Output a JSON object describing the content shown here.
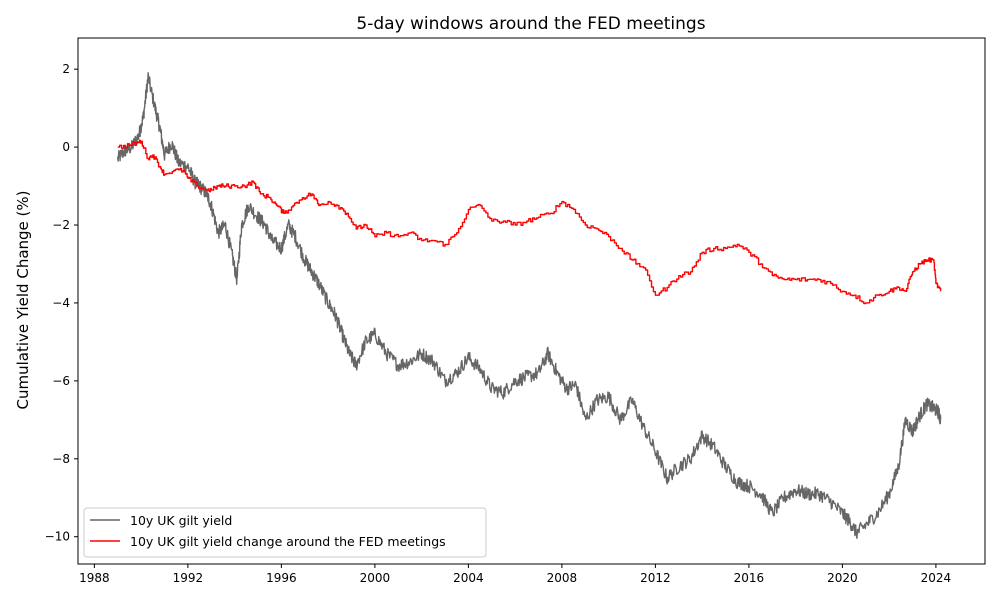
{
  "chart_data": {
    "type": "line",
    "title": "5-day windows around the FED meetings",
    "xlabel": "",
    "ylabel": "Cumulative Yield Change (%)",
    "xlim": [
      1987.3,
      2026.1
    ],
    "ylim": [
      -10.7,
      2.8
    ],
    "xticks": [
      1988,
      1992,
      1996,
      2000,
      2004,
      2008,
      2012,
      2016,
      2020,
      2024
    ],
    "yticks": [
      2,
      0,
      -2,
      -4,
      -6,
      -8,
      -10
    ],
    "grid": false,
    "legend_position": "lower-left",
    "series": [
      {
        "name": "10y UK gilt yield",
        "color": "#666666",
        "style": "noisy-line",
        "x": [
          1989.0,
          1989.3,
          1989.6,
          1989.9,
          1990.1,
          1990.3,
          1990.6,
          1990.8,
          1991.0,
          1991.3,
          1991.6,
          1992.0,
          1992.3,
          1992.5,
          1992.8,
          1993.0,
          1993.3,
          1993.6,
          1993.9,
          1994.1,
          1994.3,
          1994.6,
          1995.0,
          1995.3,
          1995.6,
          1996.0,
          1996.3,
          1996.6,
          1997.0,
          1997.3,
          1997.6,
          1998.0,
          1998.3,
          1998.6,
          1998.9,
          1999.2,
          1999.6,
          2000.0,
          2000.5,
          2001.0,
          2001.5,
          2002.0,
          2002.5,
          2003.0,
          2003.5,
          2004.0,
          2004.5,
          2005.0,
          2005.5,
          2006.0,
          2006.5,
          2007.0,
          2007.4,
          2007.8,
          2008.2,
          2008.6,
          2009.0,
          2009.5,
          2010.0,
          2010.5,
          2011.0,
          2011.5,
          2012.0,
          2012.5,
          2013.0,
          2013.5,
          2014.0,
          2014.5,
          2015.0,
          2015.5,
          2016.0,
          2016.5,
          2017.0,
          2017.5,
          2018.0,
          2018.5,
          2019.0,
          2019.5,
          2020.0,
          2020.3,
          2020.6,
          2021.0,
          2021.5,
          2022.0,
          2022.4,
          2022.7,
          2023.0,
          2023.3,
          2023.6,
          2023.9,
          2024.1,
          2024.2
        ],
        "y": [
          -0.3,
          -0.1,
          0.0,
          0.3,
          0.8,
          1.8,
          1.0,
          0.5,
          -0.2,
          0.1,
          -0.4,
          -0.5,
          -0.9,
          -1.0,
          -1.2,
          -1.5,
          -2.2,
          -2.0,
          -2.8,
          -3.4,
          -2.0,
          -1.5,
          -1.8,
          -2.0,
          -2.4,
          -2.6,
          -2.0,
          -2.3,
          -2.9,
          -3.2,
          -3.5,
          -4.0,
          -4.3,
          -4.8,
          -5.3,
          -5.6,
          -5.0,
          -4.8,
          -5.3,
          -5.6,
          -5.5,
          -5.3,
          -5.5,
          -6.0,
          -5.8,
          -5.4,
          -5.7,
          -6.2,
          -6.3,
          -6.0,
          -5.9,
          -5.8,
          -5.3,
          -5.8,
          -6.2,
          -6.1,
          -7.0,
          -6.5,
          -6.4,
          -7.0,
          -6.5,
          -7.2,
          -7.8,
          -8.5,
          -8.2,
          -8.0,
          -7.4,
          -7.7,
          -8.2,
          -8.6,
          -8.7,
          -8.9,
          -9.4,
          -9.0,
          -8.8,
          -8.9,
          -8.9,
          -9.1,
          -9.4,
          -9.6,
          -9.9,
          -9.7,
          -9.4,
          -8.9,
          -8.2,
          -7.0,
          -7.3,
          -6.9,
          -6.6,
          -6.7,
          -6.8,
          -7.0
        ]
      },
      {
        "name": "10y UK gilt yield change around the FED meetings",
        "color": "#ff0000",
        "style": "step",
        "x": [
          1989.0,
          1989.5,
          1989.8,
          1990.0,
          1990.3,
          1990.5,
          1990.8,
          1991.0,
          1991.4,
          1991.8,
          1992.0,
          1992.4,
          1992.8,
          1993.0,
          1993.3,
          1993.6,
          1994.0,
          1994.4,
          1994.8,
          1995.1,
          1995.5,
          1995.8,
          1996.1,
          1996.5,
          1996.9,
          1997.3,
          1997.6,
          1998.0,
          1998.4,
          1998.8,
          1999.2,
          1999.6,
          2000.0,
          2000.5,
          2001.0,
          2001.5,
          2002.0,
          2002.5,
          2003.0,
          2003.5,
          2004.0,
          2004.5,
          2005.0,
          2005.5,
          2006.0,
          2006.5,
          2007.0,
          2007.5,
          2008.0,
          2008.5,
          2009.0,
          2009.5,
          2010.0,
          2010.5,
          2011.0,
          2011.5,
          2012.0,
          2012.5,
          2013.0,
          2013.5,
          2014.0,
          2014.5,
          2015.0,
          2015.5,
          2016.0,
          2016.5,
          2017.0,
          2017.5,
          2018.0,
          2018.5,
          2019.0,
          2019.5,
          2020.0,
          2020.5,
          2021.0,
          2021.5,
          2022.0,
          2022.4,
          2022.7,
          2023.0,
          2023.3,
          2023.6,
          2023.9,
          2024.0,
          2024.2
        ],
        "y": [
          0.0,
          0.05,
          0.1,
          0.15,
          -0.3,
          -0.2,
          -0.5,
          -0.7,
          -0.6,
          -0.6,
          -0.8,
          -1.0,
          -1.1,
          -1.1,
          -1.0,
          -1.0,
          -1.0,
          -1.0,
          -0.9,
          -1.2,
          -1.3,
          -1.5,
          -1.7,
          -1.5,
          -1.3,
          -1.2,
          -1.5,
          -1.4,
          -1.5,
          -1.7,
          -2.1,
          -2.0,
          -2.3,
          -2.2,
          -2.3,
          -2.2,
          -2.4,
          -2.4,
          -2.5,
          -2.2,
          -1.6,
          -1.5,
          -1.9,
          -1.9,
          -2.0,
          -1.9,
          -1.8,
          -1.7,
          -1.4,
          -1.6,
          -2.0,
          -2.1,
          -2.3,
          -2.6,
          -2.9,
          -3.1,
          -3.8,
          -3.6,
          -3.3,
          -3.2,
          -2.7,
          -2.6,
          -2.6,
          -2.5,
          -2.7,
          -3.0,
          -3.3,
          -3.4,
          -3.4,
          -3.4,
          -3.4,
          -3.5,
          -3.7,
          -3.8,
          -4.0,
          -3.8,
          -3.7,
          -3.6,
          -3.7,
          -3.2,
          -3.0,
          -2.9,
          -2.9,
          -3.5,
          -3.7
        ]
      }
    ]
  }
}
